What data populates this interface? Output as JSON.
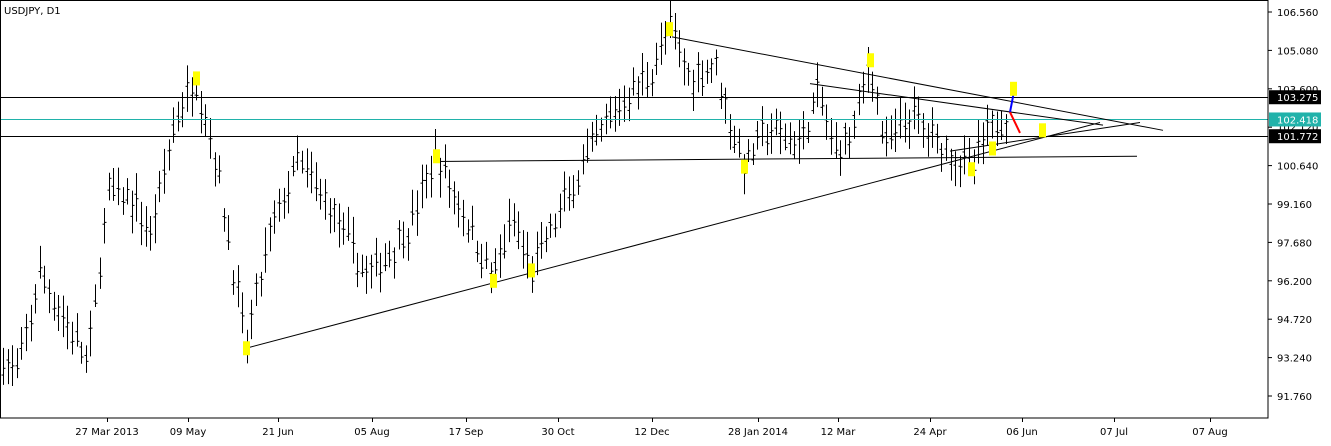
{
  "chart_data": {
    "type": "ohlc",
    "title": "USDJPY, D1",
    "symbol": "USDJPY",
    "timeframe": "D1",
    "y_ticks": [
      "106.560",
      "105.080",
      "103.600",
      "102.120",
      "100.640",
      "99.160",
      "97.680",
      "96.200",
      "94.720",
      "93.240",
      "91.760"
    ],
    "ylim": [
      90.9,
      107.0
    ],
    "x_ticks": [
      "27 Mar 2013",
      "09 May",
      "21 Jun",
      "05 Aug",
      "17 Sep",
      "30 Oct",
      "12 Dec",
      "28 Jan 2014",
      "12 Mar",
      "24 Apr",
      "06 Jun",
      "07 Jul",
      "07 Aug"
    ],
    "price_levels": [
      {
        "name": "resistance",
        "value": 103.275,
        "label": "103.275",
        "color": "#000000"
      },
      {
        "name": "current",
        "value": 102.418,
        "label": "102.418",
        "color": "#20b2aa"
      },
      {
        "name": "support",
        "value": 101.772,
        "label": "101.772",
        "color": "#000000"
      }
    ],
    "swing_points": [
      {
        "bar": 196,
        "price": 104.0,
        "note": "high"
      },
      {
        "bar": 246,
        "price": 93.6,
        "note": "low"
      },
      {
        "bar": 436,
        "price": 101.0,
        "note": "high"
      },
      {
        "bar": 493,
        "price": 96.2,
        "note": "low"
      },
      {
        "bar": 531,
        "price": 96.6,
        "note": "low"
      },
      {
        "bar": 669,
        "price": 105.9,
        "note": "high"
      },
      {
        "bar": 744,
        "price": 100.6,
        "note": "low"
      },
      {
        "bar": 870,
        "price": 104.7,
        "note": "high"
      },
      {
        "bar": 971,
        "price": 100.5,
        "note": "low"
      },
      {
        "bar": 992,
        "price": 101.3,
        "note": "low"
      },
      {
        "bar": 1013,
        "price": 103.6,
        "note": "projection"
      },
      {
        "bar": 1042,
        "price": 102.0,
        "note": "projection"
      }
    ],
    "colors": {
      "background": "#ffffff",
      "bars": "#000000",
      "marker": "#ffff00",
      "current_line": "#20b2aa",
      "current_label_bg": "#20b2aa",
      "level_label_bg": "#000000",
      "up_leg": "#0000ff",
      "down_leg": "#ff0000"
    },
    "grid": false
  }
}
